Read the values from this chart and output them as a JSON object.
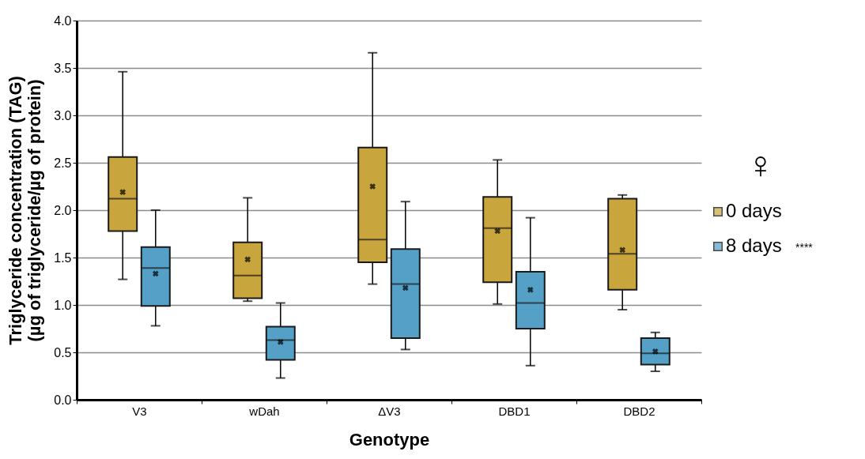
{
  "chart_data": {
    "type": "box",
    "xlabel": "Genotype",
    "ylabel": "Triglyceride concentration (TAG)\n(µg  of triglyceride/µg of protein)",
    "legend_title": "♀",
    "categories": [
      "V3",
      "wDah",
      "ΔV3",
      "DBD1",
      "DBD2"
    ],
    "ylim": [
      0,
      4
    ],
    "yticks": [
      {
        "value": 0,
        "label": "0.0"
      },
      {
        "value": 0.5,
        "label": "0.5"
      },
      {
        "value": 1,
        "label": "1.0"
      },
      {
        "value": 1.5,
        "label": "1.5"
      },
      {
        "value": 2,
        "label": "2.0"
      },
      {
        "value": 2.5,
        "label": "2.5"
      },
      {
        "value": 3,
        "label": "3.0"
      },
      {
        "value": 3.5,
        "label": "3.5"
      },
      {
        "value": 4,
        "label": "4.0"
      }
    ],
    "grid": "y",
    "legend": "right",
    "annotations": [
      "****"
    ],
    "series": [
      {
        "name": "0 days",
        "color": "#c9a53e",
        "boxes": [
          {
            "low": 1.27,
            "q1": 1.78,
            "median": 2.12,
            "q3": 2.56,
            "high": 3.46,
            "mean": 2.19
          },
          {
            "low": 1.04,
            "q1": 1.07,
            "median": 1.31,
            "q3": 1.66,
            "high": 2.13,
            "mean": 1.48
          },
          {
            "low": 1.22,
            "q1": 1.45,
            "median": 1.69,
            "q3": 2.66,
            "high": 3.66,
            "mean": 2.25
          },
          {
            "low": 1.01,
            "q1": 1.24,
            "median": 1.81,
            "q3": 2.14,
            "high": 2.53,
            "mean": 1.78
          },
          {
            "low": 0.95,
            "q1": 1.16,
            "median": 1.54,
            "q3": 2.12,
            "high": 2.16,
            "mean": 1.58
          }
        ]
      },
      {
        "name": "8 days",
        "color": "#54a0c7",
        "boxes": [
          {
            "low": 0.78,
            "q1": 0.99,
            "median": 1.39,
            "q3": 1.61,
            "high": 2.0,
            "mean": 1.33
          },
          {
            "low": 0.23,
            "q1": 0.42,
            "median": 0.63,
            "q3": 0.77,
            "high": 1.02,
            "mean": 0.61
          },
          {
            "low": 0.53,
            "q1": 0.65,
            "median": 1.22,
            "q3": 1.59,
            "high": 2.09,
            "mean": 1.18
          },
          {
            "low": 0.36,
            "q1": 0.75,
            "median": 1.02,
            "q3": 1.35,
            "high": 1.92,
            "mean": 1.16
          },
          {
            "low": 0.3,
            "q1": 0.37,
            "median": 0.49,
            "q3": 0.65,
            "high": 0.71,
            "mean": 0.51
          }
        ]
      }
    ]
  }
}
